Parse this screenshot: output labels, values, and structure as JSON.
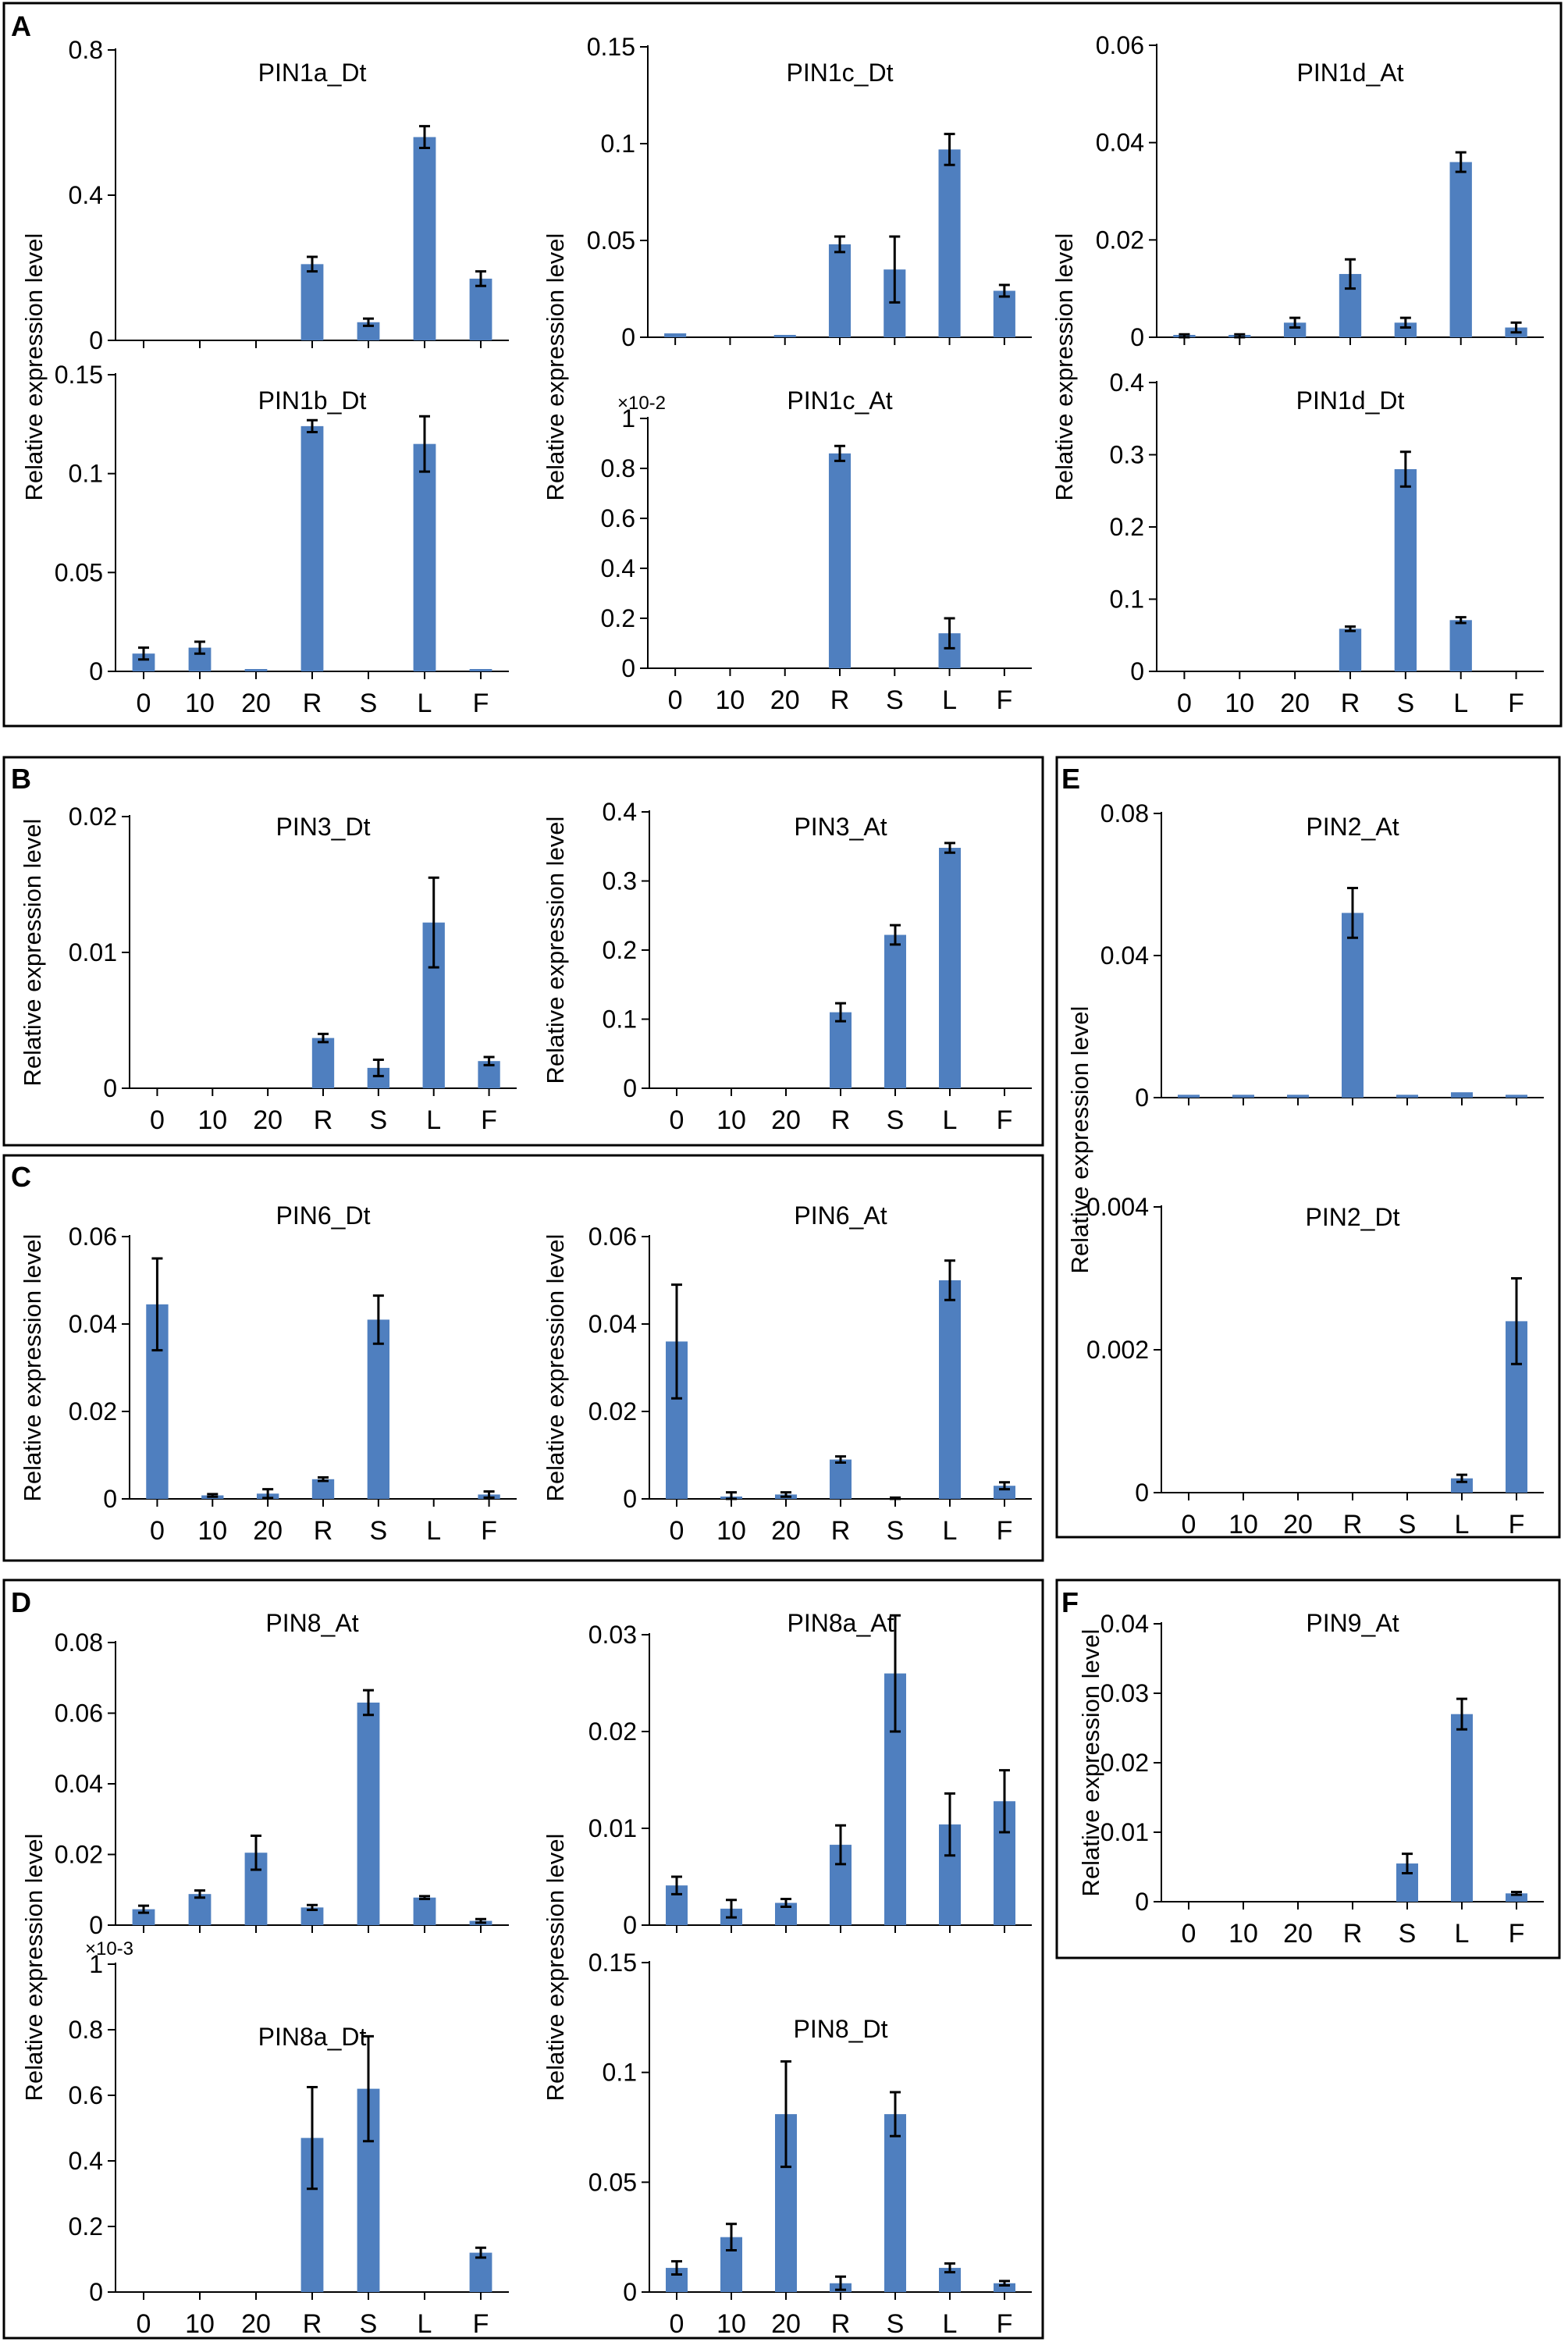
{
  "colors": {
    "bar": "#4f7fbf",
    "axis": "#000000",
    "background": "#ffffff"
  },
  "panel_labels": [
    "A",
    "B",
    "C",
    "D",
    "E",
    "F"
  ],
  "ylabel": "Relative expression level",
  "chart_data": [
    {
      "id": "PIN1a_Dt",
      "panel": "A",
      "type": "bar",
      "title": "PIN1a_Dt",
      "categories": [
        "0",
        "10",
        "20",
        "R",
        "S",
        "L",
        "F"
      ],
      "values": [
        0,
        0,
        0,
        0.21,
        0.05,
        0.56,
        0.17
      ],
      "errors": [
        0,
        0,
        0,
        0.02,
        0.01,
        0.03,
        0.02
      ],
      "ylim": [
        0,
        0.8
      ],
      "yticks": [
        0,
        0.4,
        0.8
      ],
      "ytick_labels": [
        "0",
        "0.4",
        "0.8"
      ],
      "ylabel": "",
      "multiplier": ""
    },
    {
      "id": "PIN1b_Dt",
      "panel": "A",
      "type": "bar",
      "title": "PIN1b_Dt",
      "categories": [
        "0",
        "10",
        "20",
        "R",
        "S",
        "L",
        "F"
      ],
      "values": [
        0.009,
        0.012,
        0.0005,
        0.124,
        0,
        0.115,
        0.0005
      ],
      "errors": [
        0.003,
        0.003,
        0,
        0.003,
        0,
        0.014,
        0
      ],
      "ylim": [
        0,
        0.15
      ],
      "yticks": [
        0,
        0.05,
        0.1,
        0.15
      ],
      "ytick_labels": [
        "0",
        "0.05",
        "0.1",
        "0.15"
      ],
      "ylabel": "",
      "multiplier": ""
    },
    {
      "id": "PIN1c_Dt",
      "panel": "A",
      "type": "bar",
      "title": "PIN1c_Dt",
      "categories": [
        "0",
        "10",
        "20",
        "R",
        "S",
        "L",
        "F"
      ],
      "values": [
        0.002,
        0,
        0.001,
        0.048,
        0.035,
        0.097,
        0.024
      ],
      "errors": [
        0,
        0,
        0,
        0.004,
        0.017,
        0.008,
        0.003
      ],
      "ylim": [
        0,
        0.15
      ],
      "yticks": [
        0,
        0.05,
        0.1,
        0.15
      ],
      "ytick_labels": [
        "0",
        "0.05",
        "0.1",
        "0.15"
      ],
      "ylabel": "",
      "multiplier": ""
    },
    {
      "id": "PIN1c_At",
      "panel": "A",
      "type": "bar",
      "title": "PIN1c_At",
      "categories": [
        "0",
        "10",
        "20",
        "R",
        "S",
        "L",
        "F"
      ],
      "values": [
        0,
        0,
        0,
        0.86,
        0,
        0.14,
        0
      ],
      "errors": [
        0,
        0,
        0,
        0.03,
        0,
        0.06,
        0
      ],
      "ylim": [
        0,
        1
      ],
      "yticks": [
        0,
        0.2,
        0.4,
        0.6,
        0.8,
        1
      ],
      "ytick_labels": [
        "0",
        "0.2",
        "0.4",
        "0.6",
        "0.8",
        "1"
      ],
      "ylabel": "",
      "multiplier": "×10-2"
    },
    {
      "id": "PIN1d_At",
      "panel": "A",
      "type": "bar",
      "title": "PIN1d_At",
      "categories": [
        "0",
        "10",
        "20",
        "R",
        "S",
        "L",
        "F"
      ],
      "values": [
        0.0003,
        0.0003,
        0.003,
        0.013,
        0.003,
        0.036,
        0.002
      ],
      "errors": [
        0.0003,
        0.0003,
        0.001,
        0.003,
        0.001,
        0.002,
        0.001
      ],
      "ylim": [
        0,
        0.06
      ],
      "yticks": [
        0,
        0.02,
        0.04,
        0.06
      ],
      "ytick_labels": [
        "0",
        "0.02",
        "0.04",
        "0.06"
      ],
      "ylabel": "",
      "multiplier": ""
    },
    {
      "id": "PIN1d_Dt",
      "panel": "A",
      "type": "bar",
      "title": "PIN1d_Dt",
      "categories": [
        "0",
        "10",
        "20",
        "R",
        "S",
        "L",
        "F"
      ],
      "values": [
        0,
        0,
        0,
        0.059,
        0.28,
        0.071,
        0
      ],
      "errors": [
        0,
        0,
        0,
        0.003,
        0.024,
        0.004,
        0
      ],
      "ylim": [
        0,
        0.4
      ],
      "yticks": [
        0,
        0.1,
        0.2,
        0.3,
        0.4
      ],
      "ytick_labels": [
        "0",
        "0.1",
        "0.2",
        "0.3",
        "0.4"
      ],
      "ylabel": "",
      "multiplier": ""
    },
    {
      "id": "PIN3_Dt",
      "panel": "B",
      "type": "bar",
      "title": "PIN3_Dt",
      "categories": [
        "0",
        "10",
        "20",
        "R",
        "S",
        "L",
        "F"
      ],
      "values": [
        0,
        0,
        0,
        0.0037,
        0.0015,
        0.0122,
        0.002
      ],
      "errors": [
        0,
        0,
        0,
        0.0003,
        0.0006,
        0.0033,
        0.0003
      ],
      "ylim": [
        0,
        0.02
      ],
      "yticks": [
        0,
        0.01,
        0.02
      ],
      "ytick_labels": [
        "0",
        "0.01",
        "0.02"
      ],
      "ylabel": "Relative expression level",
      "multiplier": ""
    },
    {
      "id": "PIN3_At",
      "panel": "B",
      "type": "bar",
      "title": "PIN3_At",
      "categories": [
        "0",
        "10",
        "20",
        "R",
        "S",
        "L",
        "F"
      ],
      "values": [
        0,
        0,
        0,
        0.11,
        0.222,
        0.348,
        0
      ],
      "errors": [
        0,
        0,
        0,
        0.013,
        0.014,
        0.007,
        0
      ],
      "ylim": [
        0,
        0.4
      ],
      "yticks": [
        0,
        0.1,
        0.2,
        0.3,
        0.4
      ],
      "ytick_labels": [
        "0",
        "0.1",
        "0.2",
        "0.3",
        "0.4"
      ],
      "ylabel": "Relative expression level",
      "multiplier": ""
    },
    {
      "id": "PIN6_Dt",
      "panel": "C",
      "type": "bar",
      "title": "PIN6_Dt",
      "categories": [
        "0",
        "10",
        "20",
        "R",
        "S",
        "L",
        "F"
      ],
      "values": [
        0.0445,
        0.0008,
        0.0012,
        0.0045,
        0.041,
        0,
        0.001
      ],
      "errors": [
        0.0105,
        0.0003,
        0.001,
        0.0004,
        0.0055,
        0,
        0.0007
      ],
      "ylim": [
        0,
        0.06
      ],
      "yticks": [
        0,
        0.02,
        0.04,
        0.06
      ],
      "ytick_labels": [
        "0",
        "0.02",
        "0.04",
        "0.06"
      ],
      "ylabel": "Relative expression level",
      "multiplier": ""
    },
    {
      "id": "PIN6_At",
      "panel": "C",
      "type": "bar",
      "title": "PIN6_At",
      "categories": [
        "0",
        "10",
        "20",
        "R",
        "S",
        "L",
        "F"
      ],
      "values": [
        0.036,
        0.0005,
        0.001,
        0.009,
        0,
        0.05,
        0.003
      ],
      "errors": [
        0.013,
        0.001,
        0.0005,
        0.0007,
        0.0003,
        0.0045,
        0.0008
      ],
      "ylim": [
        0,
        0.06
      ],
      "yticks": [
        0,
        0.02,
        0.04,
        0.06
      ],
      "ytick_labels": [
        "0",
        "0.02",
        "0.04",
        "0.06"
      ],
      "ylabel": "Relative expression level",
      "multiplier": ""
    },
    {
      "id": "PIN8_At",
      "panel": "D",
      "type": "bar",
      "title": "PIN8_At",
      "categories": [
        "0",
        "10",
        "20",
        "R",
        "S",
        "L",
        "F"
      ],
      "values": [
        0.0045,
        0.0088,
        0.0205,
        0.005,
        0.063,
        0.0078,
        0.0012
      ],
      "errors": [
        0.001,
        0.001,
        0.0048,
        0.0007,
        0.0035,
        0.0004,
        0.0005
      ],
      "ylim": [
        0,
        0.08
      ],
      "yticks": [
        0,
        0.02,
        0.04,
        0.06,
        0.08
      ],
      "ytick_labels": [
        "0",
        "0.02",
        "0.04",
        "0.06",
        "0.08"
      ],
      "ylabel": "",
      "multiplier": ""
    },
    {
      "id": "PIN8a_Dt",
      "panel": "D",
      "type": "bar",
      "title": "PIN8a_Dt",
      "categories": [
        "0",
        "10",
        "20",
        "R",
        "S",
        "L",
        "F"
      ],
      "values": [
        0,
        0,
        0,
        0.47,
        0.62,
        0,
        0.12
      ],
      "errors": [
        0,
        0,
        0,
        0.155,
        0.16,
        0,
        0.015
      ],
      "ylim": [
        0,
        1
      ],
      "yticks": [
        0,
        0.2,
        0.4,
        0.6,
        0.8,
        1
      ],
      "ytick_labels": [
        "0",
        "0.2",
        "0.4",
        "0.6",
        "0.8",
        "1"
      ],
      "ylabel": "",
      "multiplier": "×10-3"
    },
    {
      "id": "PIN8a_At",
      "panel": "D",
      "type": "bar",
      "title": "PIN8a_At",
      "categories": [
        "0",
        "10",
        "20",
        "R",
        "S",
        "L",
        "F"
      ],
      "values": [
        0.0041,
        0.0017,
        0.0023,
        0.0083,
        0.026,
        0.0104,
        0.0128
      ],
      "errors": [
        0.0009,
        0.0009,
        0.0004,
        0.002,
        0.006,
        0.0032,
        0.0032
      ],
      "ylim": [
        0,
        0.03
      ],
      "yticks": [
        0,
        0.01,
        0.02,
        0.03
      ],
      "ytick_labels": [
        "0",
        "0.01",
        "0.02",
        "0.03"
      ],
      "ylabel": "",
      "multiplier": ""
    },
    {
      "id": "PIN8_Dt",
      "panel": "D",
      "type": "bar",
      "title": "PIN8_Dt",
      "categories": [
        "0",
        "10",
        "20",
        "R",
        "S",
        "L",
        "F"
      ],
      "values": [
        0.011,
        0.025,
        0.081,
        0.004,
        0.081,
        0.011,
        0.004
      ],
      "errors": [
        0.003,
        0.006,
        0.024,
        0.003,
        0.01,
        0.002,
        0.001
      ],
      "ylim": [
        0,
        0.15
      ],
      "yticks": [
        0,
        0.05,
        0.1,
        0.15
      ],
      "ytick_labels": [
        "0",
        "0.05",
        "0.1",
        "0.15"
      ],
      "ylabel": "",
      "multiplier": ""
    },
    {
      "id": "PIN2_At",
      "panel": "E",
      "type": "bar",
      "title": "PIN2_At",
      "categories": [
        "0",
        "10",
        "20",
        "R",
        "S",
        "L",
        "F"
      ],
      "values": [
        0.0008,
        0.0008,
        0.0008,
        0.052,
        0.0008,
        0.0015,
        0.0008
      ],
      "errors": [
        0,
        0,
        0,
        0.007,
        0,
        0,
        0
      ],
      "ylim": [
        0,
        0.08
      ],
      "yticks": [
        0,
        0.04,
        0.08
      ],
      "ytick_labels": [
        "0",
        "0.04",
        "0.08"
      ],
      "ylabel": "",
      "multiplier": ""
    },
    {
      "id": "PIN2_Dt",
      "panel": "E",
      "type": "bar",
      "title": "PIN2_Dt",
      "categories": [
        "0",
        "10",
        "20",
        "R",
        "S",
        "L",
        "F"
      ],
      "values": [
        0,
        0,
        0,
        0,
        0,
        0.0002,
        0.0024
      ],
      "errors": [
        0,
        0,
        0,
        0,
        0,
        5e-05,
        0.0006
      ],
      "ylim": [
        0,
        0.004
      ],
      "yticks": [
        0,
        0.002,
        0.004
      ],
      "ytick_labels": [
        "0",
        "0.002",
        "0.004"
      ],
      "ylabel": "",
      "multiplier": ""
    },
    {
      "id": "PIN9_At",
      "panel": "F",
      "type": "bar",
      "title": "PIN9_At",
      "categories": [
        "0",
        "10",
        "20",
        "R",
        "S",
        "L",
        "F"
      ],
      "values": [
        0,
        0,
        0,
        0,
        0.0055,
        0.027,
        0.0012
      ],
      "errors": [
        0,
        0,
        0,
        0,
        0.0014,
        0.0022,
        0.0002
      ],
      "ylim": [
        0,
        0.04
      ],
      "yticks": [
        0,
        0.01,
        0.02,
        0.03,
        0.04
      ],
      "ytick_labels": [
        "0",
        "0.01",
        "0.02",
        "0.03",
        "0.04"
      ],
      "ylabel": "Relative expression level",
      "multiplier": ""
    }
  ]
}
